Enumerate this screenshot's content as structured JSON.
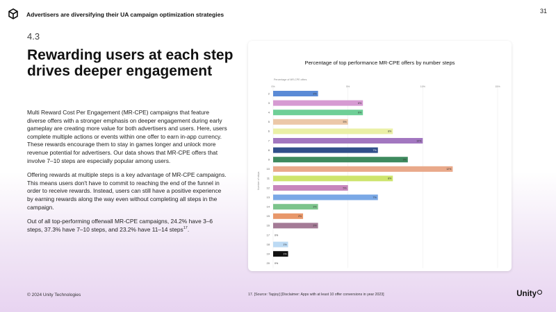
{
  "header": {
    "title": "Advertisers are diversifying their UA campaign optimization strategies",
    "page_number": "31"
  },
  "section_number": "4.3",
  "headline": "Rewarding users at each step drives deeper engagement",
  "body": {
    "p1": "Multi Reward Cost Per Engagement (MR-CPE) campaigns that feature diverse offers with a stronger emphasis on deeper engagement during early gameplay are creating more value for both advertisers and users. Here, users complete multiple actions or events within one offer to earn in-app currency. These rewards encourage them to stay in games longer and unlock more revenue potential for advertisers. Our data shows that MR-CPE offers that involve 7–10 steps are especially popular among users.",
    "p2": "Offering rewards at multiple steps is a key advantage of MR-CPE campaigns. This means users don't have to commit to reaching the end of the funnel in order to receive rewards. Instead, users can still have a positive experience by earning rewards along the way even without completing all steps in the campaign.",
    "p3": "Out of all top-performing offerwall MR-CPE campaigns, 24.2% have 3–6 steps, 37.3% have 7–10 steps, and 23.2% have 11–14 steps",
    "p3_sup": "17",
    "p3_end": "."
  },
  "footer": {
    "copyright": "© 2024 Unity Technologies",
    "footnote": "17. [Source: Tapjoy] [Disclaimer: Apps with at least 10 offer conversions in year 2023]",
    "brand": "Unity"
  },
  "chart_data": {
    "type": "bar",
    "orientation": "horizontal",
    "title": "Percentage of top performance MR-CPE offers by number steps",
    "xlabel": "Percentage of MR-CPE offers",
    "ylabel": "Number of steps",
    "xlim": [
      0,
      15
    ],
    "xticks": [
      0,
      5,
      10,
      15
    ],
    "xtick_labels": [
      "0%",
      "5%",
      "10%",
      "15%"
    ],
    "categories": [
      "2",
      "3",
      "4",
      "5",
      "6",
      "7",
      "8",
      "9",
      "10",
      "11",
      "12",
      "13",
      "14",
      "15",
      "16",
      "17",
      "18",
      "19",
      "20"
    ],
    "values": [
      3,
      6,
      6,
      5,
      8,
      10,
      7,
      9,
      12,
      8,
      5,
      7,
      3,
      2,
      3,
      0,
      1,
      1,
      0
    ],
    "labels": [
      "3%",
      "6%",
      "6%",
      "5%",
      "8%",
      "10%",
      "7%",
      "9%",
      "12%",
      "8%",
      "5%",
      "7%",
      "3%",
      "2%",
      "3%",
      "0%",
      "1%",
      "1%",
      "0%"
    ],
    "colors": [
      "#5b8bd6",
      "#d69ad2",
      "#6fcf97",
      "#ecc8a8",
      "#eaf0a6",
      "#a277c0",
      "#304f8a",
      "#3e8a5e",
      "#e9a98a",
      "#cde46c",
      "#c786bc",
      "#7aa8e6",
      "#7cc48c",
      "#e8976a",
      "#a47b96",
      "#cccccc",
      "#bcdaf4",
      "#111111",
      "#cccccc"
    ]
  }
}
